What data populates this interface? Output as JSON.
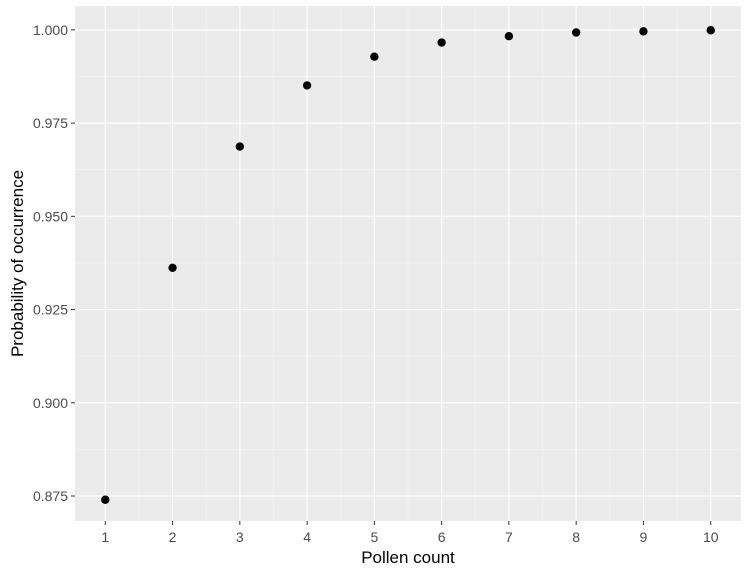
{
  "chart_data": {
    "type": "scatter",
    "title": "",
    "xlabel": "Pollen count",
    "ylabel": "Probability of occurrence",
    "x": [
      1,
      2,
      3,
      4,
      5,
      6,
      7,
      8,
      9,
      10
    ],
    "y": [
      0.874,
      0.9362,
      0.9687,
      0.9851,
      0.9928,
      0.9966,
      0.9983,
      0.9993,
      0.9996,
      0.9999
    ],
    "xlim": [
      0.55,
      10.45
    ],
    "ylim": [
      0.8683,
      1.0064
    ],
    "x_ticks": [
      1,
      2,
      3,
      4,
      5,
      6,
      7,
      8,
      9,
      10
    ],
    "x_tick_labels": [
      "1",
      "2",
      "3",
      "4",
      "5",
      "6",
      "7",
      "8",
      "9",
      "10"
    ],
    "y_ticks": [
      0.875,
      0.9,
      0.925,
      0.95,
      0.975,
      1.0
    ],
    "y_tick_labels": [
      "0.875",
      "0.900",
      "0.925",
      "0.950",
      "0.975",
      "1.000"
    ],
    "grid": true,
    "legend": "none",
    "colors": {
      "panel_background": "#ebebeb",
      "grid_major": "#ffffff",
      "grid_minor": "#f5f5f5",
      "point": "#000000",
      "tick_label": "#4d4d4d",
      "tick_mark": "#333333"
    }
  }
}
